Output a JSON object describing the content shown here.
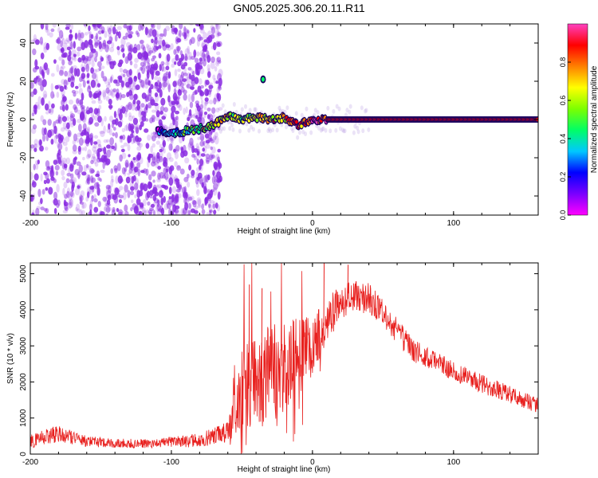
{
  "title": "GN05.2025.306.20.11.R11",
  "colors": {
    "scatter": "#8a2be2",
    "snr_line": "#e8201e",
    "axis": "#000000"
  },
  "colorbar": {
    "label": "Normalized spectral amplitude",
    "ticks": [
      "0.0",
      "0.2",
      "0.4",
      "0.6",
      "0.8"
    ],
    "range": [
      0,
      1
    ],
    "stops": [
      "#ff00ff",
      "#7a00ff",
      "#0000ff",
      "#00c8ff",
      "#00ff66",
      "#7cff00",
      "#ffff00",
      "#ff8000",
      "#ff0000",
      "#ff40c0"
    ]
  },
  "chart_data": [
    {
      "type": "heatmap",
      "title": "GN05.2025.306.20.11.R11",
      "xlabel": "Height of straight line (km)",
      "ylabel": "Frequency (Hz)",
      "xlim": [
        -200,
        160
      ],
      "ylim": [
        -50,
        50
      ],
      "xticks": [
        -200,
        -100,
        0,
        100
      ],
      "xticklabels": [
        "-200",
        "-100",
        "0",
        "100"
      ],
      "yticks": [
        -40,
        -20,
        0,
        20,
        40
      ],
      "yticklabels": [
        "-40",
        "-20",
        "0",
        "20",
        "40"
      ],
      "noise_region_km": [
        -200,
        -65
      ],
      "noise_frequency_range_hz": [
        -50,
        50
      ],
      "signal_curve": {
        "x": [
          -110,
          -100,
          -90,
          -80,
          -70,
          -60,
          -50,
          -40,
          -30,
          -20,
          -10,
          0,
          10,
          50,
          100,
          160
        ],
        "frequency": [
          -6,
          -7,
          -6,
          -5,
          -3,
          2,
          0,
          1,
          0,
          1,
          -3,
          0,
          0,
          0,
          0,
          0
        ],
        "amplitude": [
          0.2,
          0.3,
          0.4,
          0.55,
          0.65,
          0.6,
          0.55,
          0.6,
          0.7,
          0.75,
          0.8,
          0.85,
          0.9,
          0.92,
          0.92,
          0.92
        ]
      },
      "isolated_blob": {
        "x": -35,
        "frequency": 21,
        "amplitude": 0.4
      }
    },
    {
      "type": "line",
      "xlabel": "Height of straight line (km)",
      "ylabel": "SNR (10 * v/v)",
      "xlim": [
        -200,
        160
      ],
      "ylim": [
        0,
        5300
      ],
      "xticks": [
        -200,
        -100,
        0,
        100
      ],
      "xticklabels": [
        "-200",
        "-100",
        "0",
        "100"
      ],
      "yticks": [
        0,
        1000,
        2000,
        3000,
        4000,
        5000
      ],
      "yticklabels": [
        "0",
        "1000",
        "2000",
        "3000",
        "4000",
        "5000"
      ],
      "envelope": {
        "x": [
          -200,
          -180,
          -160,
          -140,
          -120,
          -100,
          -80,
          -60,
          -50,
          -40,
          -30,
          -20,
          -10,
          0,
          10,
          20,
          30,
          40,
          50,
          60,
          70,
          80,
          90,
          100,
          120,
          140,
          160
        ],
        "mean": [
          350,
          580,
          350,
          300,
          300,
          330,
          380,
          600,
          1800,
          2000,
          2200,
          2400,
          2700,
          3000,
          3700,
          4200,
          4400,
          4300,
          3900,
          3400,
          2900,
          2700,
          2500,
          2300,
          1950,
          1650,
          1350
        ],
        "spread": [
          180,
          250,
          150,
          130,
          130,
          150,
          200,
          300,
          1200,
          1300,
          1400,
          1300,
          1100,
          800,
          600,
          500,
          450,
          450,
          400,
          380,
          330,
          300,
          300,
          280,
          260,
          240,
          220
        ]
      },
      "peaks": [
        {
          "x": 8,
          "y": 5300
        },
        {
          "x": -45,
          "y": 4700
        },
        {
          "x": -36,
          "y": 4600
        },
        {
          "x": 25,
          "y": 5250
        }
      ]
    }
  ]
}
